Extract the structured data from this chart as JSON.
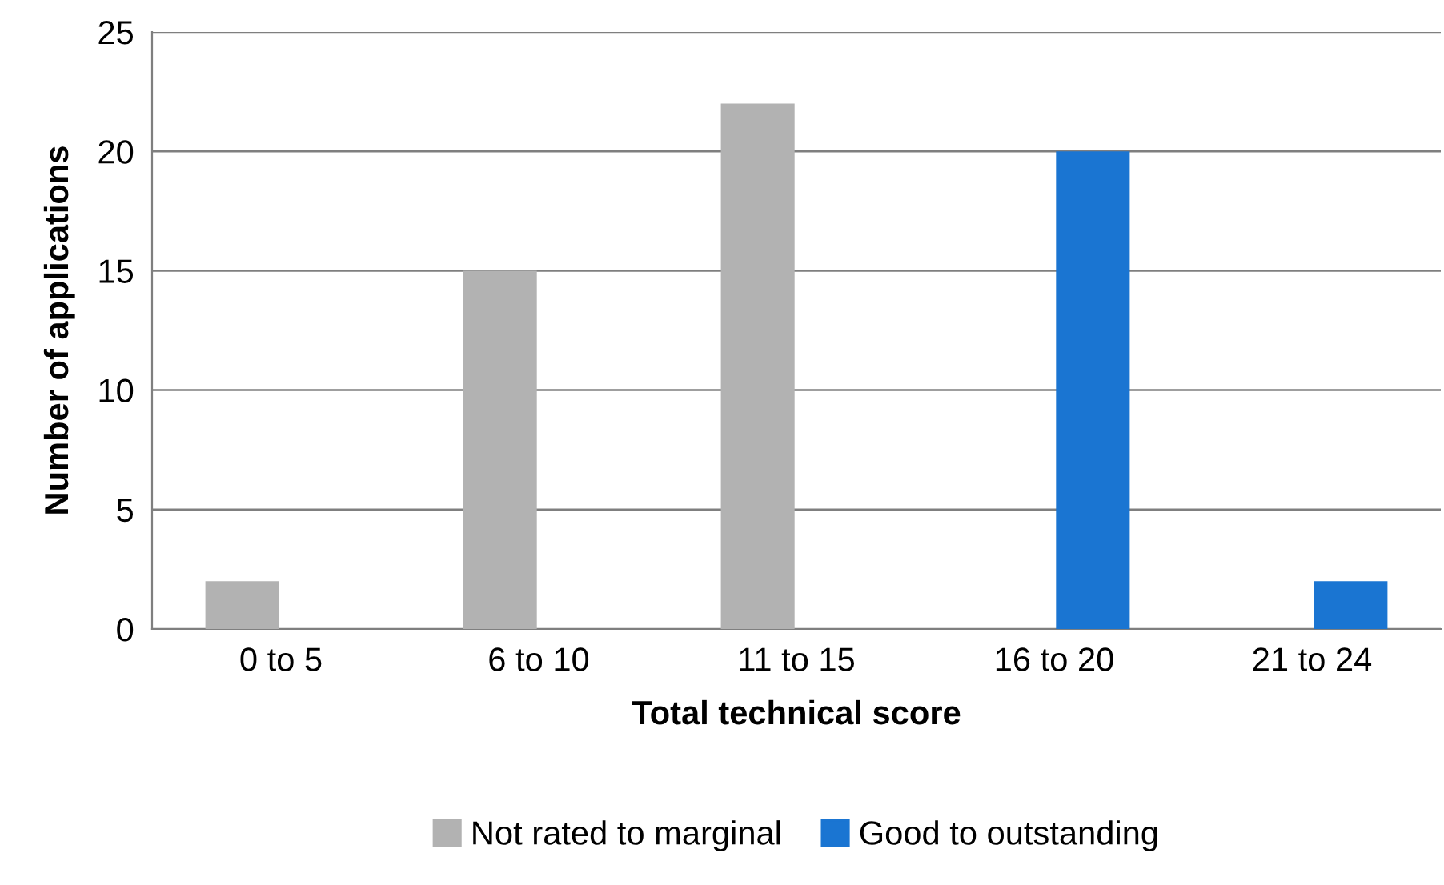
{
  "chart_data": {
    "type": "bar",
    "xlabel": "Total technical score",
    "ylabel": "Number of applications",
    "categories": [
      "0 to 5",
      "6 to 10",
      "11 to 15",
      "16 to 20",
      "21 to 24"
    ],
    "series": [
      {
        "name": "Not rated to marginal",
        "color": "#b2b2b2",
        "values": [
          2,
          15,
          22,
          null,
          null
        ]
      },
      {
        "name": "Good to outstanding",
        "color": "#1a75d2",
        "values": [
          null,
          null,
          null,
          20,
          2
        ]
      }
    ],
    "ylim": [
      0,
      25
    ],
    "yticks": [
      0,
      5,
      10,
      15,
      20,
      25
    ],
    "grid": "y",
    "legend": "bottom"
  }
}
